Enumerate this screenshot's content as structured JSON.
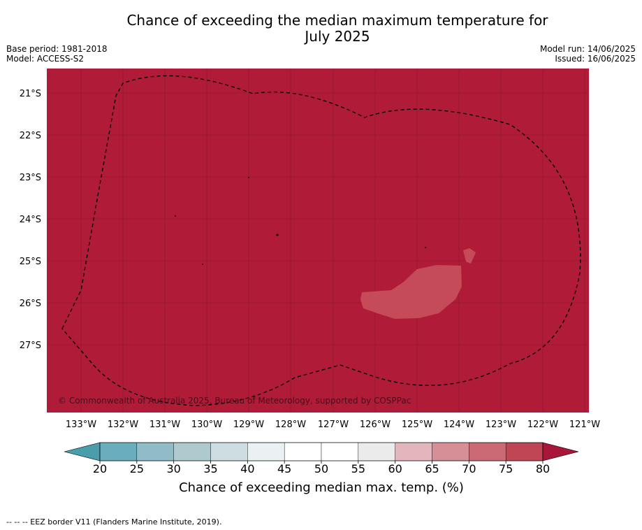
{
  "title": {
    "line1": "Chance of exceeding the median maximum temperature for",
    "line2": "July 2025"
  },
  "meta": {
    "base_period": "Base period: 1981-2018",
    "model": "Model: ACCESS-S2",
    "model_run": "Model run: 14/06/2025",
    "issued": "Issued: 16/06/2025"
  },
  "map": {
    "fill_color": "#b01c38",
    "anomaly_color": "#c54b59",
    "border_color": "#000000",
    "copyright": "© Commonwealth of Australia 2025, Bureau of Meteorology, supported by COSPPac",
    "lat_labels": [
      "21°S",
      "22°S",
      "23°S",
      "24°S",
      "25°S",
      "26°S",
      "27°S"
    ],
    "lon_labels": [
      "133°W",
      "132°W",
      "131°W",
      "130°W",
      "129°W",
      "128°W",
      "127°W",
      "126°W",
      "125°W",
      "124°W",
      "123°W",
      "122°W",
      "121°W"
    ]
  },
  "colorbar": {
    "label": "Chance of exceeding median max. temp. (%)",
    "ticks": [
      "20",
      "25",
      "30",
      "35",
      "40",
      "45",
      "50",
      "55",
      "60",
      "65",
      "70",
      "75",
      "80"
    ],
    "low_extend_color": "#4a9eac",
    "high_extend_color": "#a8173a",
    "colors": [
      "#6aaebd",
      "#8fbcc6",
      "#aecacf",
      "#cddde1",
      "#ebf1f3",
      "#ffffff",
      "#ffffff",
      "#ebebeb",
      "#e2b6bc",
      "#d68f97",
      "#cb6a75",
      "#c14655"
    ]
  },
  "footnote": "-- -- -- EEZ border V11 (Flanders Marine Institute, 2019)."
}
